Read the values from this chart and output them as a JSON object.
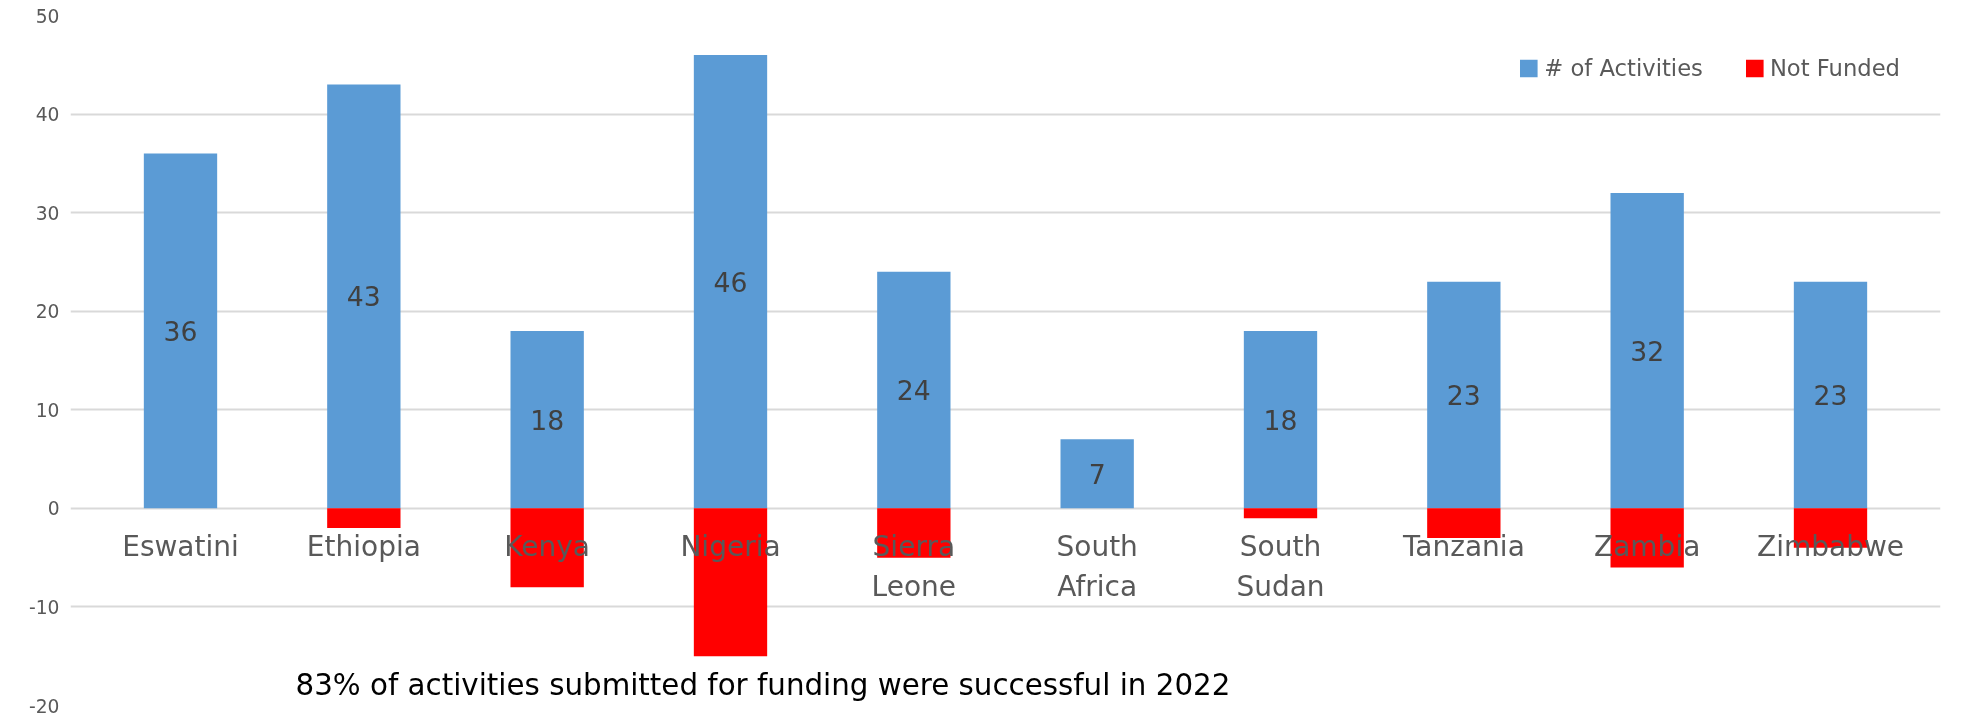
{
  "chart_data": {
    "type": "bar",
    "categories": [
      "Eswatini",
      "Ethiopia",
      "Kenya",
      "Nigeria",
      "Sierra Leone",
      "South Africa",
      "South Sudan",
      "Tanzania",
      "Zambia",
      "Zimbabwe"
    ],
    "series": [
      {
        "name": "# of Activities",
        "color": "#5b9bd5",
        "values": [
          36,
          43,
          18,
          46,
          24,
          7,
          18,
          23,
          32,
          23
        ],
        "value_labels": [
          "36",
          "43",
          "18",
          "46",
          "24",
          "7",
          "18",
          "23",
          "32",
          "23"
        ]
      },
      {
        "name": "Not Funded",
        "color": "#ff0000",
        "values": [
          0,
          -2,
          -8,
          -15,
          -5,
          0,
          -1,
          -3,
          -6,
          -4
        ]
      }
    ],
    "stacked": true,
    "ylim": [
      -20,
      50
    ],
    "yticks": [
      -20,
      -10,
      0,
      10,
      20,
      30,
      40,
      50
    ],
    "grid": "y",
    "legend": "top right",
    "annotations": [
      "83% of activities submitted for funding were successful in 2022"
    ]
  }
}
